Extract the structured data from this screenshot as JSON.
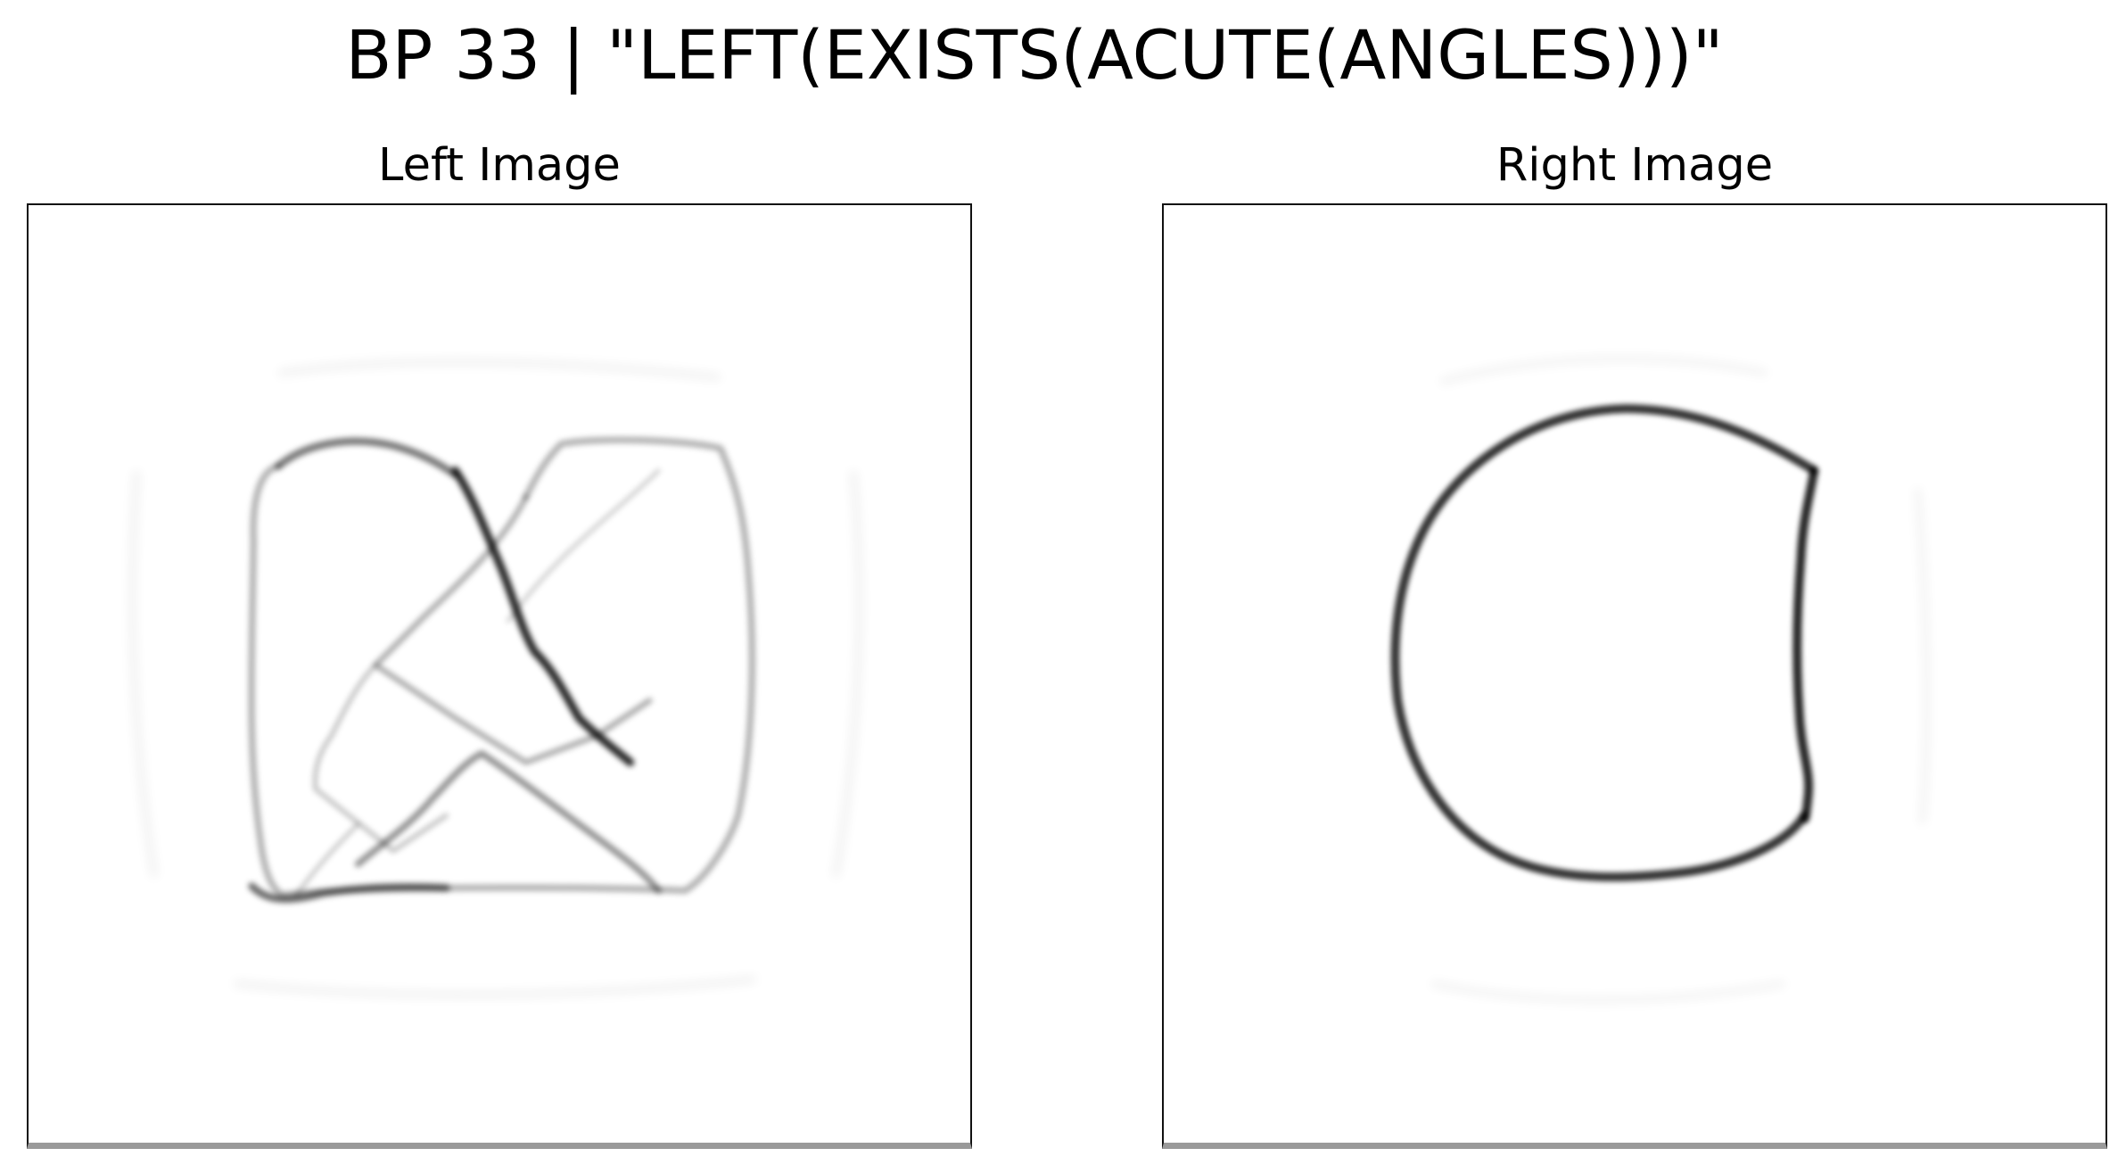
{
  "figure": {
    "title": "BP 33 | \"LEFT(EXISTS(ACUTE(ANGLES)))\""
  },
  "panels": [
    {
      "title": "Left Image"
    },
    {
      "title": "Right Image"
    }
  ]
}
